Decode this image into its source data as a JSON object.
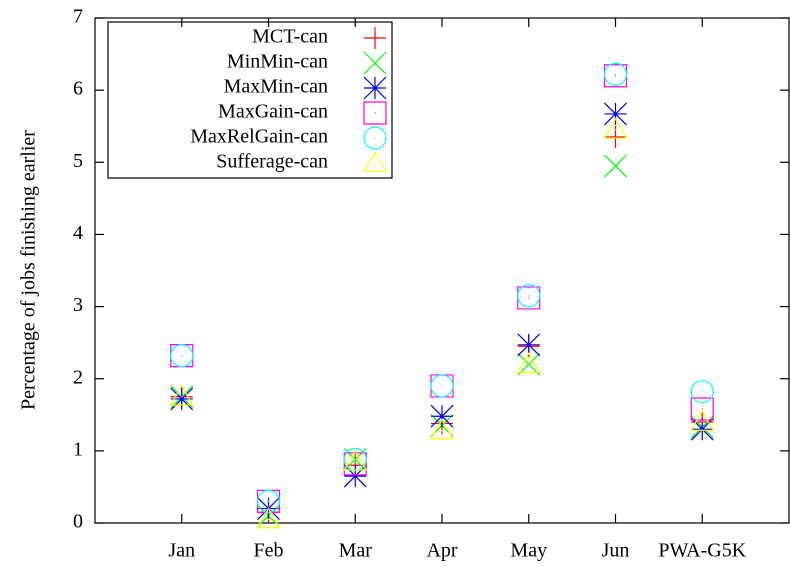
{
  "chart_data": {
    "type": "scatter",
    "y_label": "Percentage of jobs finishing earlier",
    "categories": [
      "Jan",
      "Feb",
      "Mar",
      "Apr",
      "May",
      "Jun",
      "PWA-G5K"
    ],
    "ylim": [
      0,
      7
    ],
    "yticks": [
      0,
      1,
      2,
      3,
      4,
      5,
      6,
      7
    ],
    "legend": "top-left",
    "series": [
      {
        "name": "MCT-can",
        "color": "#ff0000",
        "marker": "plus",
        "values": [
          1.75,
          0.15,
          0.8,
          1.38,
          2.45,
          5.35,
          1.4
        ]
      },
      {
        "name": "MinMin-can",
        "color": "#00ff00",
        "marker": "cross",
        "values": [
          1.75,
          0.1,
          0.88,
          1.35,
          2.2,
          4.95,
          1.33
        ]
      },
      {
        "name": "MaxMin-can",
        "color": "#0000ff",
        "marker": "star",
        "values": [
          1.72,
          0.2,
          0.65,
          1.48,
          2.47,
          5.67,
          1.3
        ]
      },
      {
        "name": "MaxGain-can",
        "color": "#ff00ff",
        "marker": "square",
        "values": [
          2.32,
          0.3,
          0.82,
          1.9,
          3.12,
          6.2,
          1.58
        ]
      },
      {
        "name": "MaxRelGain-can",
        "color": "#00ffff",
        "marker": "circle",
        "values": [
          2.32,
          0.3,
          0.88,
          1.9,
          3.15,
          6.22,
          1.82
        ]
      },
      {
        "name": "Sufferage-can",
        "color": "#ffff00",
        "marker": "triangle",
        "values": [
          1.75,
          0.05,
          0.85,
          1.28,
          2.2,
          5.45,
          1.4
        ]
      }
    ]
  }
}
